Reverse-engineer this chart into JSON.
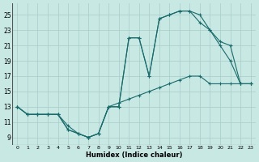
{
  "xlabel": "Humidex (Indice chaleur)",
  "bg_color": "#c8e8e4",
  "grid_color": "#a8ccc8",
  "line_color": "#1a6b6b",
  "xlim": [
    -0.5,
    23.5
  ],
  "ylim": [
    8,
    26.5
  ],
  "xticks": [
    0,
    1,
    2,
    3,
    4,
    5,
    6,
    7,
    8,
    9,
    10,
    11,
    12,
    13,
    14,
    15,
    16,
    17,
    18,
    19,
    20,
    21,
    22,
    23
  ],
  "yticks": [
    9,
    11,
    13,
    15,
    17,
    19,
    21,
    23,
    25
  ],
  "series": [
    {
      "x": [
        0,
        1,
        2,
        3,
        4,
        5,
        6,
        7,
        8,
        9,
        10,
        11,
        12,
        13,
        14,
        15,
        16,
        17,
        18,
        19,
        20,
        21,
        22,
        23
      ],
      "y": [
        13,
        12,
        12,
        12,
        12,
        10,
        9.5,
        9,
        9.5,
        13,
        13,
        22,
        22,
        17,
        24.5,
        25,
        25.5,
        25.5,
        24,
        23,
        21,
        19,
        16,
        16
      ]
    },
    {
      "x": [
        0,
        1,
        2,
        3,
        4,
        5,
        6,
        7,
        8,
        9,
        10,
        11,
        12,
        13,
        14,
        15,
        16,
        17,
        18,
        19,
        20,
        21,
        22,
        23
      ],
      "y": [
        13,
        12,
        12,
        12,
        12,
        10,
        9.5,
        9,
        9.5,
        13,
        13,
        22,
        22,
        17,
        24.5,
        25,
        25.5,
        25.5,
        25,
        23,
        21.5,
        21,
        16,
        16
      ]
    },
    {
      "x": [
        0,
        1,
        2,
        3,
        4,
        5,
        6,
        7,
        8,
        9,
        10,
        11,
        12,
        13,
        14,
        15,
        16,
        17,
        18,
        19,
        20,
        21,
        22,
        23
      ],
      "y": [
        13,
        12,
        12,
        12,
        12,
        10.5,
        9.5,
        9,
        9.5,
        13,
        13.5,
        14,
        14.5,
        15,
        15.5,
        16,
        16.5,
        17,
        17,
        16,
        16,
        16,
        16,
        16
      ]
    }
  ]
}
